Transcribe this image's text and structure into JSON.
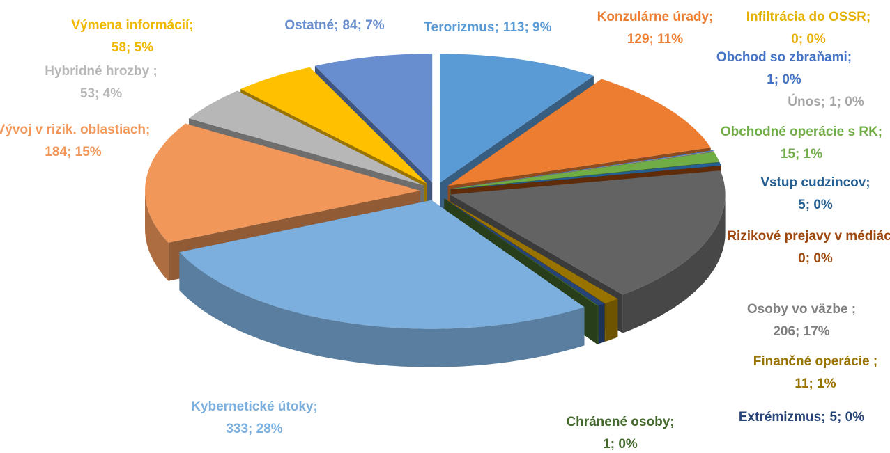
{
  "chart_data": {
    "type": "pie3d",
    "categories": [
      "Terorizmus;",
      "Konzulárne úrady;",
      "Infiltrácia do OSSR;",
      "Obchod so zbraňami;",
      "Únos;",
      "Obchodné operácie s RK;",
      "Vstup cudzincov;",
      "Rizikové prejavy v médiách;",
      "Osoby vo väzbe ;",
      "Finančné operácie ;",
      "Extrémizmus;",
      "Chránené osoby;",
      "Kybernetické útoky;",
      "Vývoj v rizik. oblastiach;",
      "Hybridné hrozby ;",
      "Výmena informácií;",
      "Ostatné;"
    ],
    "values": [
      113,
      129,
      0,
      1,
      1,
      15,
      5,
      0,
      206,
      11,
      5,
      1,
      333,
      184,
      53,
      58,
      84
    ],
    "value_labels": [
      "113; 9%",
      "129; 11%",
      "0; 0%",
      "1; 0%",
      "1; 0%",
      "15; 1%",
      "5; 0%",
      "0; 0%",
      "206; 17%",
      "11; 1%",
      "5; 0%",
      "1; 0%",
      "333; 28%",
      "184; 15%",
      "53; 4%",
      "58; 5%",
      "84; 7%"
    ],
    "colors": [
      "#5b9bd5",
      "#ed7d31",
      "#ffc000",
      "#4472c4",
      "#a5a5a5",
      "#70ad47",
      "#255e91",
      "#9e480e",
      "#636363",
      "#997300",
      "#264478",
      "#43682b",
      "#7cafdd",
      "#f1975a",
      "#b7b7b7",
      "#ffc000",
      "#698ed0"
    ]
  }
}
